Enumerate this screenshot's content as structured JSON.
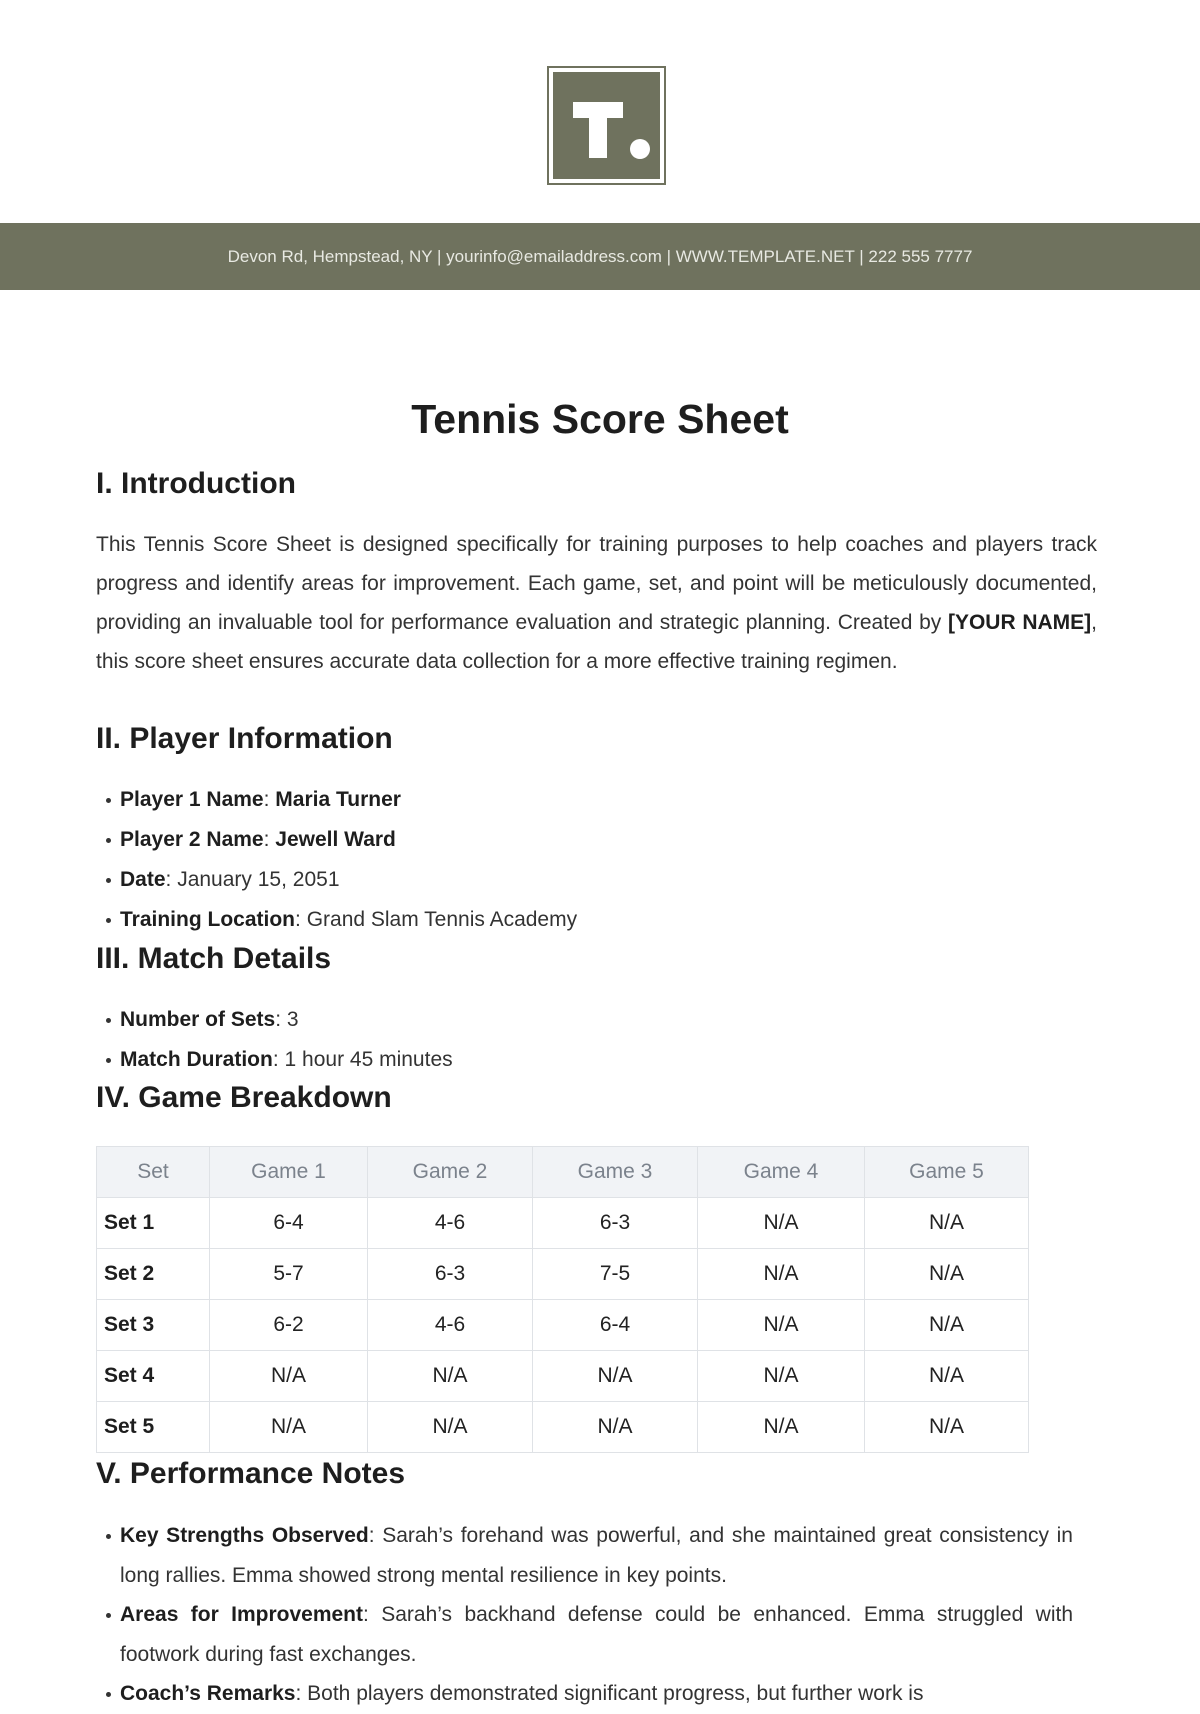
{
  "logo": {
    "letter": "T."
  },
  "header": {
    "contact": "Devon Rd, Hempstead, NY | yourinfo@emailaddress.com | WWW.TEMPLATE.NET | 222 555 7777",
    "color": "#6f725e"
  },
  "title": "Tennis Score Sheet",
  "intro": {
    "heading": "I. Introduction",
    "text_before": "This Tennis Score Sheet is designed specifically for training purposes to help coaches and players track progress and identify areas for improvement. Each game, set, and point will be meticulously documented, providing an invaluable tool for performance evaluation and strategic planning. Created by ",
    "name": "[YOUR NAME]",
    "text_after": ", this score sheet ensures accurate data collection for a more effective training regimen."
  },
  "player_info": {
    "heading": "II. Player Information",
    "items": [
      {
        "label": "Player 1 Name",
        "value": "Maria Turner",
        "bold_value": true
      },
      {
        "label": "Player 2 Name",
        "value": "Jewell Ward",
        "bold_value": true
      },
      {
        "label": "Date",
        "value": "January 15, 2051"
      },
      {
        "label": "Training Location",
        "value": "Grand Slam Tennis Academy"
      }
    ]
  },
  "match": {
    "heading": "III. Match Details",
    "items": [
      {
        "label": "Number of Sets",
        "value": "3"
      },
      {
        "label": "Match Duration",
        "value": "1 hour 45 minutes"
      }
    ]
  },
  "breakdown": {
    "heading": "IV. Game Breakdown",
    "columns": [
      "Set",
      "Game 1",
      "Game 2",
      "Game 3",
      "Game 4",
      "Game 5"
    ],
    "rows": [
      [
        "Set 1",
        "6-4",
        "4-6",
        "6-3",
        "N/A",
        "N/A"
      ],
      [
        "Set 2",
        "5-7",
        "6-3",
        "7-5",
        "N/A",
        "N/A"
      ],
      [
        "Set 3",
        "6-2",
        "4-6",
        "6-4",
        "N/A",
        "N/A"
      ],
      [
        "Set 4",
        "N/A",
        "N/A",
        "N/A",
        "N/A",
        "N/A"
      ],
      [
        "Set 5",
        "N/A",
        "N/A",
        "N/A",
        "N/A",
        "N/A"
      ]
    ]
  },
  "notes": {
    "heading": "V. Performance Notes",
    "items": [
      {
        "label": "Key Strengths Observed",
        "value": "Sarah’s forehand was powerful, and she maintained great consistency in long rallies. Emma showed strong mental resilience in key points."
      },
      {
        "label": "Areas for Improvement",
        "value": "Sarah’s backhand defense could be enhanced. Emma struggled with footwork during fast exchanges."
      },
      {
        "label": "Coach’s Remarks",
        "value": "Both players demonstrated significant progress, but further work is"
      }
    ]
  }
}
